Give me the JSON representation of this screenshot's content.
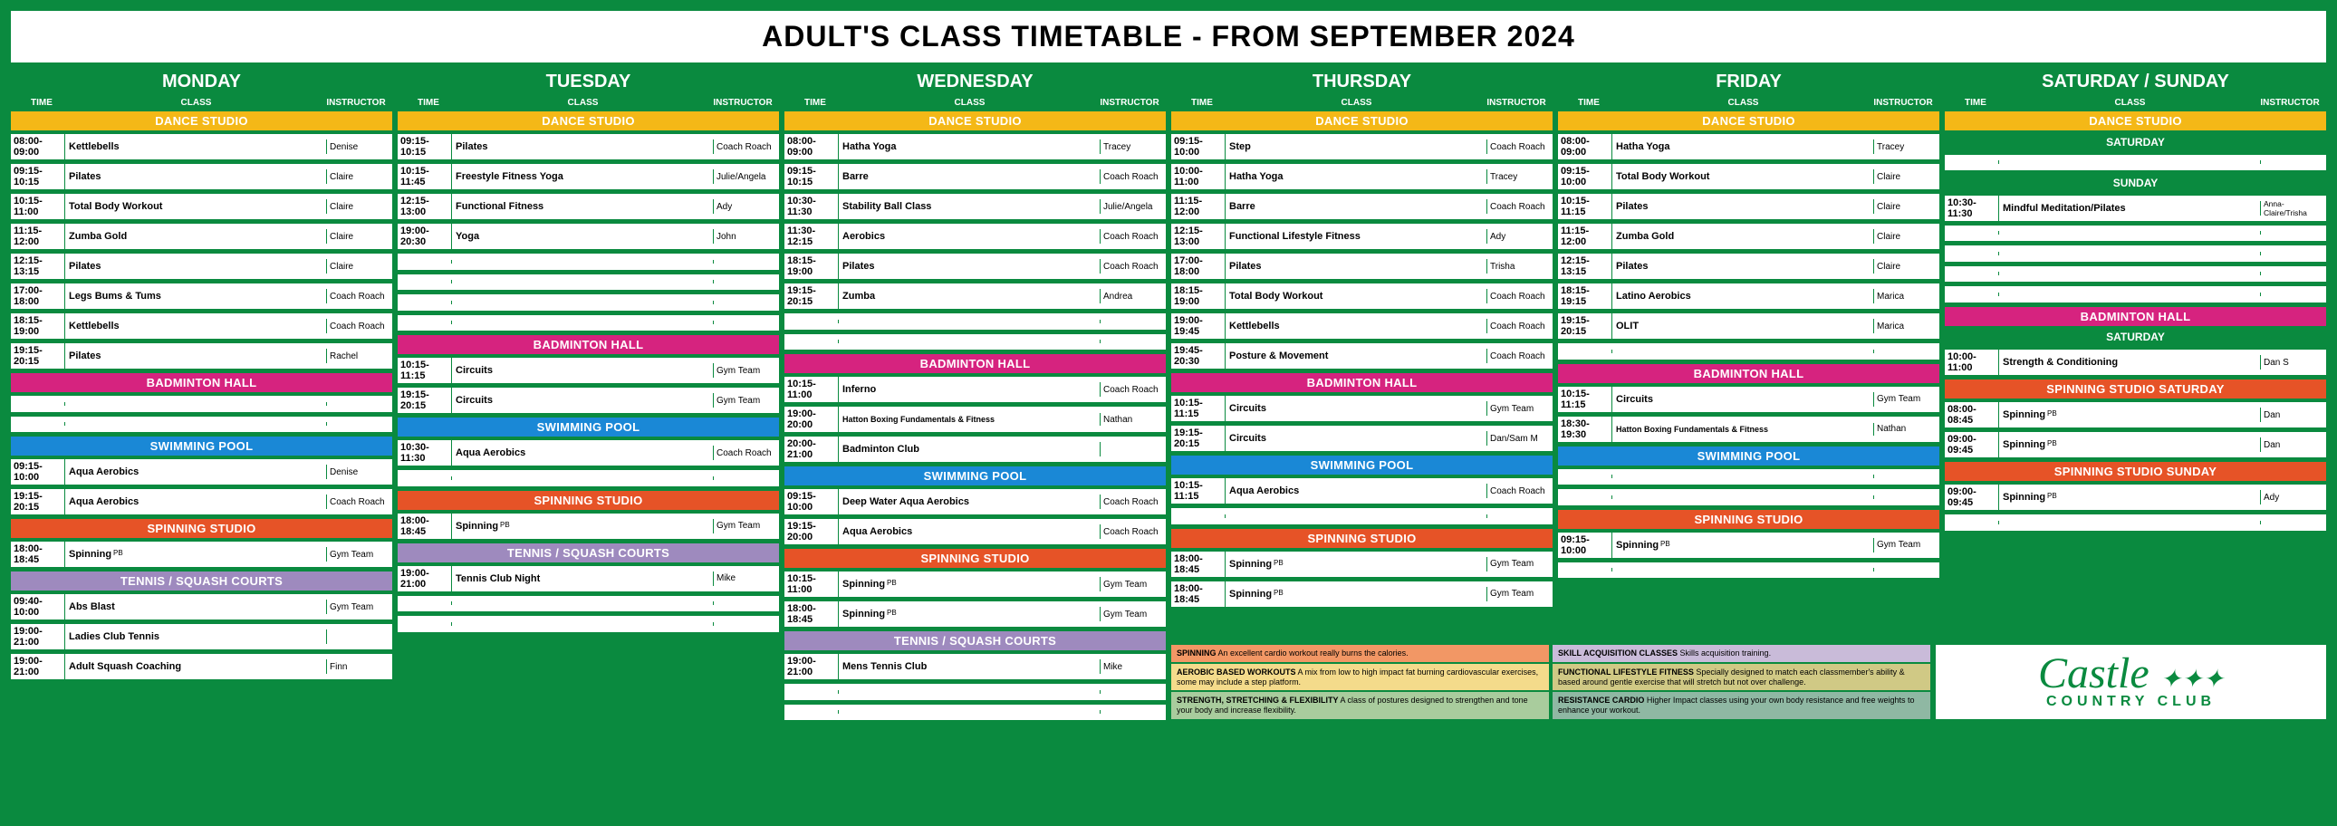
{
  "title": "ADULT'S CLASS TIMETABLE - FROM SEPTEMBER 2024",
  "col_headers": {
    "time": "TIME",
    "class": "CLASS",
    "instructor": "INSTRUCTOR"
  },
  "section_names": {
    "dance": "DANCE STUDIO",
    "badminton": "BADMINTON HALL",
    "swimming": "SWIMMING POOL",
    "spinning": "SPINNING STUDIO",
    "tennis": "TENNIS / SQUASH COURTS",
    "spin_sat": "SPINNING STUDIO SATURDAY",
    "spin_sun": "SPINNING STUDIO SUNDAY"
  },
  "days": [
    {
      "name": "MONDAY",
      "sections": [
        {
          "key": "dance",
          "color": "yellow",
          "rows": [
            {
              "t": "08:00-09:00",
              "c": "Kettlebells",
              "i": "Denise"
            },
            {
              "t": "09:15-10:15",
              "c": "Pilates",
              "i": "Claire"
            },
            {
              "t": "10:15-11:00",
              "c": "Total Body Workout",
              "i": "Claire"
            },
            {
              "t": "11:15-12:00",
              "c": "Zumba Gold",
              "i": "Claire"
            },
            {
              "t": "12:15-13:15",
              "c": "Pilates",
              "i": "Claire"
            },
            {
              "t": "17:00-18:00",
              "c": "Legs Bums & Tums",
              "i": "Coach Roach"
            },
            {
              "t": "18:15-19:00",
              "c": "Kettlebells",
              "i": "Coach Roach"
            },
            {
              "t": "19:15-20:15",
              "c": "Pilates",
              "i": "Rachel"
            }
          ]
        },
        {
          "key": "badminton",
          "color": "pink",
          "rows": [
            {
              "empty": true
            },
            {
              "empty": true
            }
          ]
        },
        {
          "key": "swimming",
          "color": "blue",
          "rows": [
            {
              "t": "09:15-10:00",
              "c": "Aqua Aerobics",
              "i": "Denise"
            },
            {
              "t": "19:15-20:15",
              "c": "Aqua Aerobics",
              "i": "Coach Roach"
            }
          ]
        },
        {
          "key": "spinning",
          "color": "orange",
          "rows": [
            {
              "t": "18:00-18:45",
              "c": "Spinning",
              "pb": "PB",
              "i": "Gym Team"
            }
          ]
        },
        {
          "key": "tennis",
          "color": "purple",
          "rows": [
            {
              "t": "09:40-10:00",
              "c": "Abs Blast",
              "i": "Gym Team"
            },
            {
              "t": "19:00-21:00",
              "c": "Ladies Club Tennis",
              "i": ""
            },
            {
              "t": "19:00-21:00",
              "c": "Adult Squash Coaching",
              "i": "Finn"
            }
          ]
        }
      ]
    },
    {
      "name": "TUESDAY",
      "sections": [
        {
          "key": "dance",
          "color": "yellow",
          "rows": [
            {
              "t": "09:15-10:15",
              "c": "Pilates",
              "i": "Coach Roach"
            },
            {
              "t": "10:15-11:45",
              "c": "Freestyle Fitness Yoga",
              "i": "Julie/Angela"
            },
            {
              "t": "12:15-13:00",
              "c": "Functional Fitness",
              "i": "Ady"
            },
            {
              "t": "19:00-20:30",
              "c": "Yoga",
              "i": "John"
            },
            {
              "empty": true
            },
            {
              "empty": true
            },
            {
              "empty": true
            },
            {
              "empty": true
            }
          ]
        },
        {
          "key": "badminton",
          "color": "pink",
          "rows": [
            {
              "t": "10:15-11:15",
              "c": "Circuits",
              "i": "Gym Team"
            },
            {
              "t": "19:15-20:15",
              "c": "Circuits",
              "i": "Gym Team"
            }
          ]
        },
        {
          "key": "swimming",
          "color": "blue",
          "rows": [
            {
              "t": "10:30-11:30",
              "c": "Aqua Aerobics",
              "i": "Coach Roach"
            },
            {
              "empty": true
            }
          ]
        },
        {
          "key": "spinning",
          "color": "orange",
          "rows": [
            {
              "t": "18:00-18:45",
              "c": "Spinning",
              "pb": "PB",
              "i": "Gym Team"
            }
          ]
        },
        {
          "key": "tennis",
          "color": "purple",
          "rows": [
            {
              "t": "19:00-21:00",
              "c": "Tennis Club Night",
              "i": "Mike"
            },
            {
              "empty": true
            },
            {
              "empty": true
            }
          ]
        }
      ]
    },
    {
      "name": "WEDNESDAY",
      "sections": [
        {
          "key": "dance",
          "color": "yellow",
          "rows": [
            {
              "t": "08:00-09:00",
              "c": "Hatha Yoga",
              "i": "Tracey"
            },
            {
              "t": "09:15-10:15",
              "c": "Barre",
              "i": "Coach Roach"
            },
            {
              "t": "10:30-11:30",
              "c": "Stability Ball Class",
              "i": "Julie/Angela"
            },
            {
              "t": "11:30-12:15",
              "c": "Aerobics",
              "i": "Coach Roach"
            },
            {
              "t": "18:15-19:00",
              "c": "Pilates",
              "i": "Coach Roach"
            },
            {
              "t": "19:15-20:15",
              "c": "Zumba",
              "i": "Andrea"
            },
            {
              "empty": true
            },
            {
              "empty": true
            }
          ]
        },
        {
          "key": "badminton",
          "color": "pink",
          "rows": [
            {
              "t": "10:15-11:00",
              "c": "Inferno",
              "i": "Coach Roach"
            },
            {
              "t": "19:00-20:00",
              "c": "Hatton Boxing Fundamentals & Fitness",
              "i": "Nathan",
              "small": true
            },
            {
              "t": "20:00-21:00",
              "c": "Badminton Club",
              "i": ""
            }
          ]
        },
        {
          "key": "swimming",
          "color": "blue",
          "rows": [
            {
              "t": "09:15-10:00",
              "c": "Deep Water Aqua Aerobics",
              "i": "Coach Roach"
            },
            {
              "t": "19:15-20:00",
              "c": "Aqua Aerobics",
              "i": "Coach Roach"
            }
          ]
        },
        {
          "key": "spinning",
          "color": "orange",
          "rows": [
            {
              "t": "10:15-11:00",
              "c": "Spinning",
              "pb": "PB",
              "i": "Gym Team"
            },
            {
              "t": "18:00-18:45",
              "c": "Spinning",
              "pb": "PB",
              "i": "Gym Team"
            }
          ]
        },
        {
          "key": "tennis",
          "color": "purple",
          "rows": [
            {
              "t": "19:00-21:00",
              "c": "Mens Tennis Club",
              "i": "Mike"
            },
            {
              "empty": true
            },
            {
              "empty": true
            }
          ]
        }
      ]
    },
    {
      "name": "THURSDAY",
      "sections": [
        {
          "key": "dance",
          "color": "yellow",
          "rows": [
            {
              "t": "09:15-10:00",
              "c": "Step",
              "i": "Coach Roach"
            },
            {
              "t": "10:00-11:00",
              "c": "Hatha Yoga",
              "i": "Tracey"
            },
            {
              "t": "11:15-12:00",
              "c": "Barre",
              "i": "Coach Roach"
            },
            {
              "t": "12:15-13:00",
              "c": "Functional Lifestyle Fitness",
              "i": "Ady"
            },
            {
              "t": "17:00-18:00",
              "c": "Pilates",
              "i": "Trisha"
            },
            {
              "t": "18:15-19:00",
              "c": "Total Body Workout",
              "i": "Coach Roach"
            },
            {
              "t": "19:00-19:45",
              "c": "Kettlebells",
              "i": "Coach Roach"
            },
            {
              "t": "19:45-20:30",
              "c": "Posture & Movement",
              "i": "Coach Roach"
            }
          ]
        },
        {
          "key": "badminton",
          "color": "pink",
          "rows": [
            {
              "t": "10:15-11:15",
              "c": "Circuits",
              "i": "Gym Team"
            },
            {
              "t": "19:15-20:15",
              "c": "Circuits",
              "i": "Dan/Sam M"
            }
          ]
        },
        {
          "key": "swimming",
          "color": "blue",
          "rows": [
            {
              "t": "10:15-11:15",
              "c": "Aqua Aerobics",
              "i": "Coach Roach"
            },
            {
              "empty": true
            }
          ]
        },
        {
          "key": "spinning",
          "color": "orange",
          "rows": [
            {
              "t": "18:00-18:45",
              "c": "Spinning",
              "pb": "PB",
              "i": "Gym Team"
            },
            {
              "t": "18:00-18:45",
              "c": "Spinning",
              "pb": "PB",
              "i": "Gym Team"
            }
          ]
        }
      ]
    },
    {
      "name": "FRIDAY",
      "sections": [
        {
          "key": "dance",
          "color": "yellow",
          "rows": [
            {
              "t": "08:00-09:00",
              "c": "Hatha Yoga",
              "i": "Tracey"
            },
            {
              "t": "09:15-10:00",
              "c": "Total Body Workout",
              "i": "Claire"
            },
            {
              "t": "10:15-11:15",
              "c": "Pilates",
              "i": "Claire"
            },
            {
              "t": "11:15-12:00",
              "c": "Zumba Gold",
              "i": "Claire"
            },
            {
              "t": "12:15-13:15",
              "c": "Pilates",
              "i": "Claire"
            },
            {
              "t": "18:15-19:15",
              "c": "Latino Aerobics",
              "i": "Marica"
            },
            {
              "t": "19:15-20:15",
              "c": "OLIT",
              "i": "Marica"
            },
            {
              "empty": true
            }
          ]
        },
        {
          "key": "badminton",
          "color": "pink",
          "rows": [
            {
              "t": "10:15-11:15",
              "c": "Circuits",
              "i": "Gym Team"
            },
            {
              "t": "18:30-19:30",
              "c": "Hatton Boxing Fundamentals & Fitness",
              "i": "Nathan",
              "small": true
            }
          ]
        },
        {
          "key": "swimming",
          "color": "blue",
          "rows": [
            {
              "empty": true
            },
            {
              "empty": true
            }
          ]
        },
        {
          "key": "spinning",
          "color": "orange",
          "rows": [
            {
              "t": "09:15-10:00",
              "c": "Spinning",
              "pb": "PB",
              "i": "Gym Team"
            },
            {
              "empty": true
            }
          ]
        }
      ]
    },
    {
      "name": "SATURDAY / SUNDAY",
      "weekend": true,
      "sections": [
        {
          "key": "dance",
          "color": "yellow",
          "rows": [
            {
              "subday": "SATURDAY"
            },
            {
              "empty": true
            },
            {
              "subday": "SUNDAY"
            },
            {
              "t": "10:30-11:30",
              "c": "Mindful Meditation/Pilates",
              "i": "Anna-Claire/Trisha",
              "smalli": true
            },
            {
              "empty": true
            },
            {
              "empty": true
            },
            {
              "empty": true
            },
            {
              "empty": true
            }
          ]
        },
        {
          "key": "badminton",
          "color": "pink",
          "rows": [
            {
              "subday": "SATURDAY"
            },
            {
              "t": "10:00-11:00",
              "c": "Strength & Conditioning",
              "i": "Dan S"
            }
          ]
        },
        {
          "key": "spin_sat",
          "color": "orange",
          "rows": [
            {
              "t": "08:00-08:45",
              "c": "Spinning",
              "pb": "PB",
              "i": "Dan"
            },
            {
              "t": "09:00-09:45",
              "c": "Spinning",
              "pb": "PB",
              "i": "Dan"
            }
          ]
        },
        {
          "key": "spin_sun",
          "color": "orange",
          "rows": [
            {
              "t": "09:00-09:45",
              "c": "Spinning",
              "pb": "PB",
              "i": "Ady"
            },
            {
              "empty": true
            }
          ]
        }
      ]
    }
  ],
  "legend": [
    [
      {
        "cls": "l-orange",
        "h": "SPINNING",
        "t": "An excellent cardio workout really burns the calories."
      },
      {
        "cls": "l-yellow",
        "h": "AEROBIC BASED WORKOUTS",
        "t": "A mix from low to high impact fat burning cardiovascular exercises, some may include a step platform."
      },
      {
        "cls": "l-green",
        "h": "STRENGTH, STRETCHING & FLEXIBILITY",
        "t": "A class of postures designed to strengthen and tone your body and increase flexibility."
      }
    ],
    [
      {
        "cls": "l-purple",
        "h": "SKILL ACQUISITION CLASSES",
        "t": "Skills acquisition training."
      },
      {
        "cls": "l-olive",
        "h": "FUNCTIONAL LIFESTYLE FITNESS",
        "t": "Specially designed to match each classmember's ability & based around gentle exercise that will stretch but not over challenge."
      },
      {
        "cls": "l-teal",
        "h": "RESISTANCE CARDIO",
        "t": "Higher Impact classes using your own body resistance and free weights to enhance your workout."
      }
    ]
  ],
  "logo": {
    "main": "Castle",
    "sub": "COUNTRY CLUB"
  },
  "colors": {
    "bg": "#0a8a3f",
    "yellow": "#f4b817",
    "pink": "#d6237f",
    "blue": "#1a88d6",
    "orange": "#e65327",
    "purple": "#9e8abe",
    "white": "#ffffff"
  }
}
